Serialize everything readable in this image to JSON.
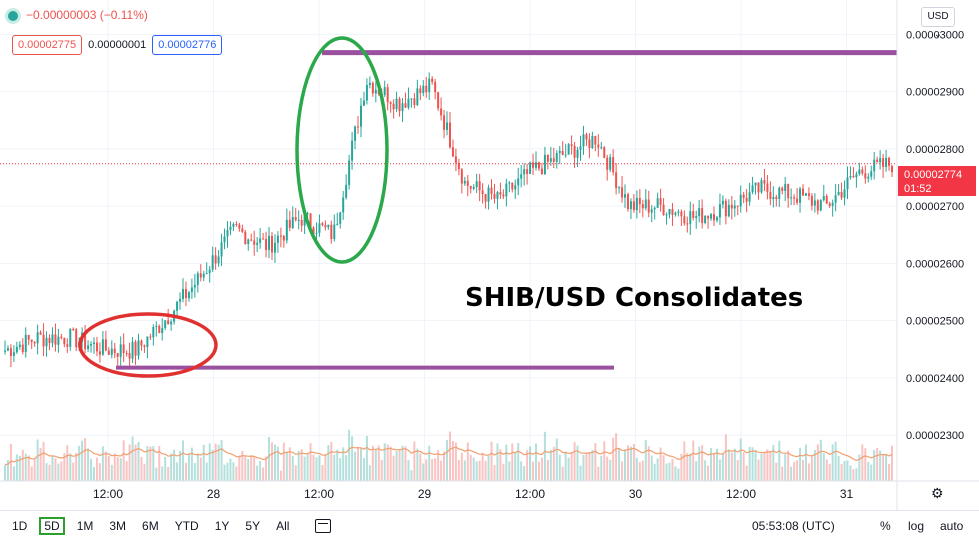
{
  "legend": {
    "change": "−0.00000003 (−0.11%)"
  },
  "quote": {
    "bid": "0.00002775",
    "spread": "0.00000001",
    "ask": "0.00002776"
  },
  "currency": "USD",
  "last_price": {
    "value": "0.00002774",
    "countdown": "01:52"
  },
  "annotation": "SHIB/USD Consolidates",
  "toolbar": {
    "timeframes": [
      "1D",
      "5D",
      "1M",
      "3M",
      "6M",
      "YTD",
      "1Y",
      "5Y",
      "All"
    ],
    "active_timeframe": "5D",
    "clock": "05:53:08 (UTC)",
    "percent": "%",
    "log": "log",
    "auto": "auto"
  },
  "chart_data": {
    "type": "candlestick",
    "y_ticks": [
      "0.00003000",
      "0.00002900",
      "0.00002800",
      "0.00002700",
      "0.00002600",
      "0.00002500",
      "0.00002400",
      "0.00002300"
    ],
    "x_ticks": [
      "12:00",
      "28",
      "12:00",
      "29",
      "12:00",
      "30",
      "12:00",
      "31"
    ],
    "ylim": [
      2.22e-05,
      3.06e-05
    ],
    "x": [
      0,
      4,
      8,
      12,
      16,
      20,
      24,
      28,
      32,
      36,
      40,
      44,
      48,
      52,
      56,
      60,
      64,
      68,
      72,
      76,
      80,
      84,
      88,
      92,
      96,
      100,
      104,
      108
    ],
    "close": [
      2.448e-05,
      2.47e-05,
      2.47e-05,
      2.45e-05,
      2.448e-05,
      2.51e-05,
      2.58e-05,
      2.66e-05,
      2.63e-05,
      2.68e-05,
      2.65e-05,
      2.92e-05,
      2.88e-05,
      2.91e-05,
      2.74e-05,
      2.71e-05,
      2.76e-05,
      2.79e-05,
      2.82e-05,
      2.7e-05,
      2.7e-05,
      2.68e-05,
      2.7e-05,
      2.73e-05,
      2.72e-05,
      2.7e-05,
      2.76e-05,
      2.774e-05
    ],
    "annotations": {
      "resistance_line": 2.968e-05,
      "support_line": 2.418e-05
    }
  },
  "colors": {
    "up": "#26a69a",
    "down": "#ef5350",
    "volume_ma": "#f0a070",
    "lines": "#9b4f9f",
    "ellipse_red": "#e03030",
    "ellipse_green": "#2aa84a"
  }
}
